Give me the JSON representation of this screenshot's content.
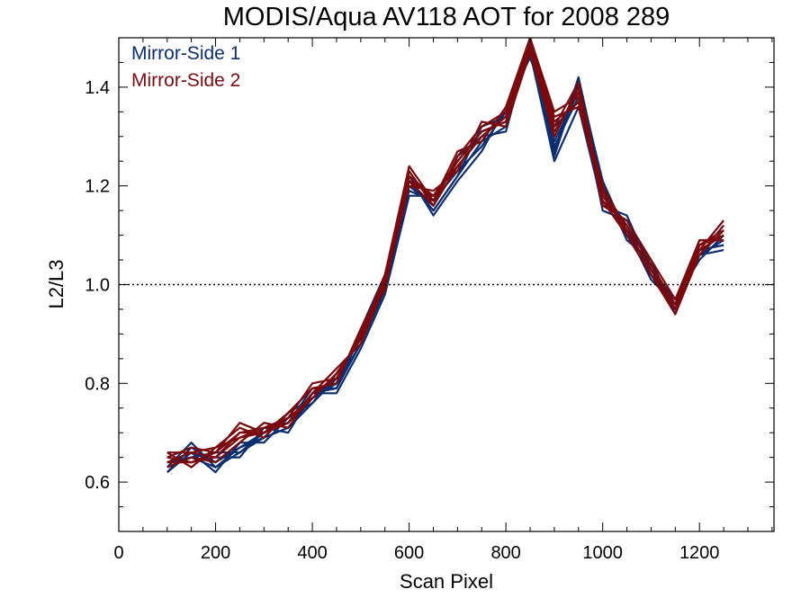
{
  "chart_data": {
    "type": "line",
    "title": "MODIS/Aqua AV118 AOT for 2008 289",
    "xlabel": "Scan Pixel",
    "ylabel": "L2/L3",
    "xlim": [
      0,
      1354
    ],
    "ylim": [
      0.5,
      1.5
    ],
    "xticks": [
      0,
      200,
      400,
      600,
      800,
      1000,
      1200
    ],
    "xtick_labels": [
      "0",
      "200",
      "400",
      "600",
      "800",
      "1000",
      "1200"
    ],
    "yticks": [
      0.6,
      0.8,
      1.0,
      1.2,
      1.4
    ],
    "ytick_labels": [
      "0.6",
      "0.8",
      "1.0",
      "1.2",
      "1.4"
    ],
    "reference_line": {
      "y": 1.0,
      "style": "dotted",
      "color": "#000000"
    },
    "legend": {
      "placement": "top-left"
    },
    "x": [
      100,
      150,
      200,
      250,
      300,
      350,
      400,
      450,
      500,
      550,
      600,
      650,
      700,
      750,
      800,
      850,
      900,
      950,
      1000,
      1050,
      1100,
      1150,
      1200,
      1250
    ],
    "series": [
      {
        "name": "Mirror-Side 1",
        "color": "#0d2e6e",
        "lines": [
          [
            0.63,
            0.65,
            0.63,
            0.66,
            0.69,
            0.71,
            0.77,
            0.8,
            0.88,
            0.99,
            1.2,
            1.16,
            1.24,
            1.3,
            1.34,
            1.49,
            1.28,
            1.38,
            1.17,
            1.1,
            1.04,
            0.95,
            1.06,
            1.09
          ],
          [
            0.62,
            0.67,
            0.64,
            0.67,
            0.7,
            0.72,
            0.78,
            0.79,
            0.9,
            1.01,
            1.21,
            1.15,
            1.22,
            1.29,
            1.32,
            1.5,
            1.3,
            1.4,
            1.19,
            1.12,
            1.02,
            0.96,
            1.07,
            1.08
          ],
          [
            0.64,
            0.66,
            0.62,
            0.68,
            0.68,
            0.73,
            0.76,
            0.81,
            0.89,
            1.0,
            1.19,
            1.17,
            1.23,
            1.28,
            1.35,
            1.47,
            1.25,
            1.36,
            1.16,
            1.14,
            1.03,
            0.97,
            1.05,
            1.1
          ],
          [
            0.65,
            0.64,
            0.65,
            0.65,
            0.71,
            0.7,
            0.78,
            0.78,
            0.87,
            0.98,
            1.18,
            1.18,
            1.25,
            1.31,
            1.33,
            1.48,
            1.27,
            1.42,
            1.2,
            1.09,
            1.05,
            0.94,
            1.08,
            1.11
          ],
          [
            0.63,
            0.68,
            0.63,
            0.67,
            0.69,
            0.74,
            0.77,
            0.8,
            0.91,
            1.02,
            1.22,
            1.14,
            1.21,
            1.27,
            1.36,
            1.46,
            1.32,
            1.37,
            1.18,
            1.11,
            1.01,
            0.96,
            1.06,
            1.07
          ],
          [
            0.64,
            0.65,
            0.66,
            0.66,
            0.7,
            0.72,
            0.79,
            0.79,
            0.88,
            0.99,
            1.2,
            1.16,
            1.26,
            1.3,
            1.31,
            1.49,
            1.29,
            1.39,
            1.15,
            1.13,
            1.04,
            0.95,
            1.09,
            1.09
          ],
          [
            0.62,
            0.66,
            0.64,
            0.68,
            0.72,
            0.71,
            0.76,
            0.82,
            0.89,
            1.0,
            1.21,
            1.15,
            1.22,
            1.32,
            1.34,
            1.47,
            1.26,
            1.41,
            1.21,
            1.1,
            1.02,
            0.97,
            1.07,
            1.08
          ]
        ]
      },
      {
        "name": "Mirror-Side 2",
        "color": "#7a0a0e",
        "lines": [
          [
            0.65,
            0.64,
            0.66,
            0.7,
            0.7,
            0.72,
            0.78,
            0.81,
            0.9,
            1.0,
            1.22,
            1.17,
            1.25,
            1.31,
            1.33,
            1.5,
            1.33,
            1.37,
            1.18,
            1.11,
            1.03,
            0.95,
            1.07,
            1.1
          ],
          [
            0.64,
            0.66,
            0.65,
            0.69,
            0.71,
            0.73,
            0.77,
            0.82,
            0.89,
            1.01,
            1.21,
            1.18,
            1.24,
            1.3,
            1.34,
            1.48,
            1.31,
            1.39,
            1.17,
            1.12,
            1.04,
            0.96,
            1.08,
            1.11
          ],
          [
            0.66,
            0.63,
            0.67,
            0.71,
            0.69,
            0.74,
            0.79,
            0.8,
            0.91,
            0.99,
            1.23,
            1.16,
            1.26,
            1.32,
            1.35,
            1.49,
            1.34,
            1.36,
            1.19,
            1.1,
            1.02,
            0.94,
            1.06,
            1.12
          ],
          [
            0.63,
            0.65,
            0.64,
            0.68,
            0.72,
            0.71,
            0.78,
            0.83,
            0.88,
            1.0,
            1.2,
            1.19,
            1.23,
            1.33,
            1.32,
            1.47,
            1.3,
            1.4,
            1.16,
            1.13,
            1.05,
            0.97,
            1.09,
            1.09
          ],
          [
            0.65,
            0.67,
            0.66,
            0.72,
            0.7,
            0.73,
            0.8,
            0.81,
            0.9,
            1.02,
            1.24,
            1.17,
            1.27,
            1.29,
            1.36,
            1.5,
            1.35,
            1.38,
            1.2,
            1.11,
            1.03,
            0.95,
            1.07,
            1.13
          ],
          [
            0.64,
            0.64,
            0.65,
            0.7,
            0.71,
            0.72,
            0.77,
            0.82,
            0.89,
            1.0,
            1.22,
            1.18,
            1.25,
            1.31,
            1.33,
            1.48,
            1.32,
            1.41,
            1.18,
            1.12,
            1.04,
            0.96,
            1.08,
            1.1
          ],
          [
            0.66,
            0.66,
            0.67,
            0.69,
            0.7,
            0.74,
            0.79,
            0.8,
            0.91,
            1.01,
            1.21,
            1.16,
            1.24,
            1.3,
            1.34,
            1.49,
            1.33,
            1.37,
            1.17,
            1.1,
            1.02,
            0.95,
            1.06,
            1.11
          ]
        ]
      }
    ]
  }
}
